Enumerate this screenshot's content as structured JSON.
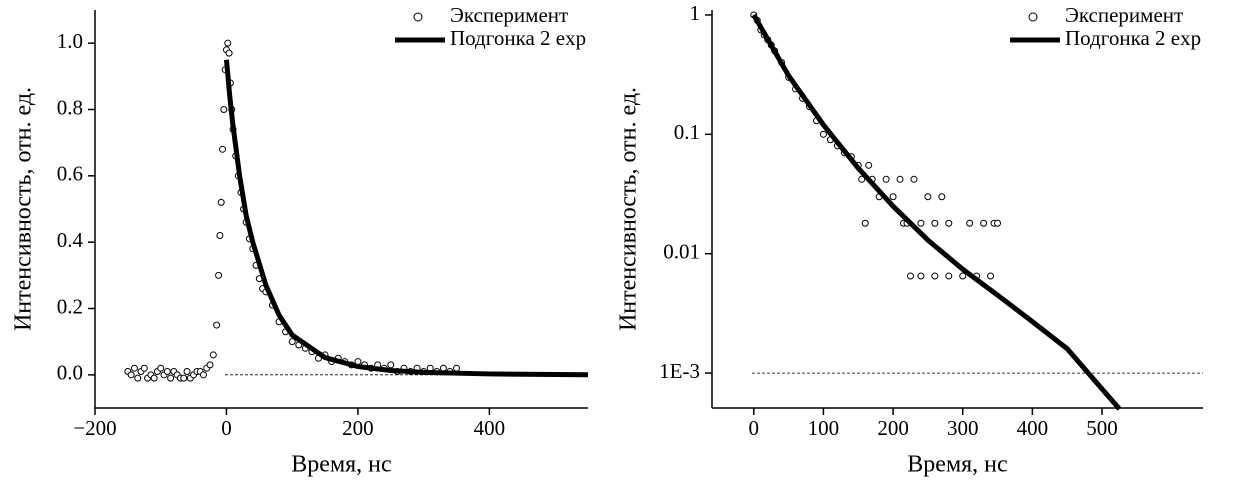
{
  "chart_data": [
    {
      "type": "scatter",
      "x_label": "Время, нс",
      "y_label": "Интенсивность, отн. ед.",
      "xlim": [
        -200,
        550
      ],
      "ylim": [
        -0.1,
        1.1
      ],
      "log_y": false,
      "baseline": 0,
      "xticks": [
        {
          "value": -200,
          "label": "−200"
        },
        0,
        200,
        400
      ],
      "yticks": [
        {
          "value": 0,
          "label": "0.0"
        },
        0.2,
        0.4,
        0.6,
        0.8,
        {
          "value": 1,
          "label": "1.0"
        }
      ],
      "series": [
        {
          "name": "Эксперимент",
          "type": "scatter",
          "color": "#000000",
          "x": [
            -150,
            -145,
            -140,
            -135,
            -130,
            -125,
            -120,
            -115,
            -110,
            -105,
            -100,
            -95,
            -90,
            -85,
            -80,
            -75,
            -70,
            -65,
            -60,
            -55,
            -50,
            -45,
            -40,
            -35,
            -30,
            -25,
            -20,
            -15,
            -12,
            -10,
            -8,
            -6,
            -4,
            -2,
            0,
            2,
            4,
            6,
            8,
            10,
            14,
            18,
            22,
            26,
            30,
            35,
            40,
            45,
            50,
            55,
            60,
            70,
            80,
            90,
            100,
            110,
            120,
            130,
            140,
            150,
            160,
            170,
            180,
            190,
            200,
            210,
            220,
            230,
            240,
            250,
            260,
            270,
            280,
            290,
            300,
            310,
            320,
            330,
            340,
            350
          ],
          "values": [
            0.01,
            0,
            0.02,
            -0.01,
            0.01,
            0.02,
            -0.01,
            0,
            -0.01,
            0.01,
            0.02,
            0,
            0.01,
            -0.01,
            0.01,
            0,
            -0.01,
            -0.01,
            0.01,
            -0.01,
            0,
            0.01,
            0.01,
            0,
            0.02,
            0.03,
            0.06,
            0.15,
            0.3,
            0.42,
            0.52,
            0.68,
            0.8,
            0.92,
            0.98,
            1.0,
            0.97,
            0.88,
            0.8,
            0.74,
            0.66,
            0.6,
            0.55,
            0.5,
            0.46,
            0.41,
            0.38,
            0.33,
            0.29,
            0.26,
            0.25,
            0.21,
            0.16,
            0.13,
            0.1,
            0.09,
            0.08,
            0.07,
            0.05,
            0.06,
            0.04,
            0.05,
            0.04,
            0.03,
            0.04,
            0.03,
            0.02,
            0.03,
            0.02,
            0.03,
            0.01,
            0.02,
            0.01,
            0.02,
            0.01,
            0.02,
            0.01,
            0.02,
            0.01,
            0.02
          ]
        },
        {
          "name": "Подгонка 2 exp",
          "type": "line",
          "color": "#000000",
          "x": [
            0,
            5,
            10,
            20,
            30,
            40,
            60,
            80,
            100,
            150,
            200,
            250,
            300,
            400,
            550
          ],
          "values": [
            0.95,
            0.84,
            0.75,
            0.6,
            0.48,
            0.4,
            0.27,
            0.18,
            0.12,
            0.052,
            0.025,
            0.013,
            0.0074,
            0.0027,
            0.0003
          ]
        }
      ]
    },
    {
      "type": "scatter",
      "x_label": "Время, нс",
      "y_label": "Интенсивность, отн. ед.",
      "xlim": [
        -60,
        645
      ],
      "ylim": [
        0.00051,
        1.1
      ],
      "log_y": true,
      "baseline": 0.001,
      "xticks": [
        0,
        100,
        200,
        300,
        400,
        500
      ],
      "yticks": [
        1,
        0.1,
        0.01,
        {
          "value": 0.001,
          "label": "1E-3"
        }
      ],
      "series": [
        {
          "name": "Эксперимент",
          "type": "scatter",
          "color": "#000000",
          "x": [
            0,
            5,
            10,
            15,
            20,
            25,
            30,
            40,
            50,
            60,
            70,
            80,
            90,
            100,
            110,
            120,
            130,
            140,
            150,
            155,
            160,
            165,
            170,
            180,
            190,
            200,
            210,
            215,
            220,
            230,
            240,
            250,
            260,
            270,
            280,
            225,
            240,
            260,
            280,
            300,
            310,
            320,
            330,
            340,
            345,
            350
          ],
          "values": [
            1.0,
            0.9,
            0.75,
            0.68,
            0.62,
            0.56,
            0.5,
            0.4,
            0.3,
            0.24,
            0.2,
            0.17,
            0.13,
            0.1,
            0.09,
            0.08,
            0.07,
            0.065,
            0.055,
            0.042,
            0.018,
            0.055,
            0.042,
            0.03,
            0.042,
            0.03,
            0.042,
            0.018,
            0.018,
            0.042,
            0.018,
            0.03,
            0.018,
            0.03,
            0.018,
            0.0065,
            0.0065,
            0.0065,
            0.0065,
            0.0065,
            0.018,
            0.0065,
            0.018,
            0.0065,
            0.018,
            0.018
          ]
        },
        {
          "name": "Подгонка 2 exp",
          "type": "line",
          "color": "#000000",
          "x": [
            0,
            50,
            100,
            150,
            200,
            250,
            300,
            350,
            400,
            450,
            525
          ],
          "values": [
            1,
            0.31,
            0.12,
            0.052,
            0.025,
            0.013,
            0.0074,
            0.0045,
            0.0027,
            0.0016,
            0.0005
          ]
        }
      ]
    }
  ]
}
